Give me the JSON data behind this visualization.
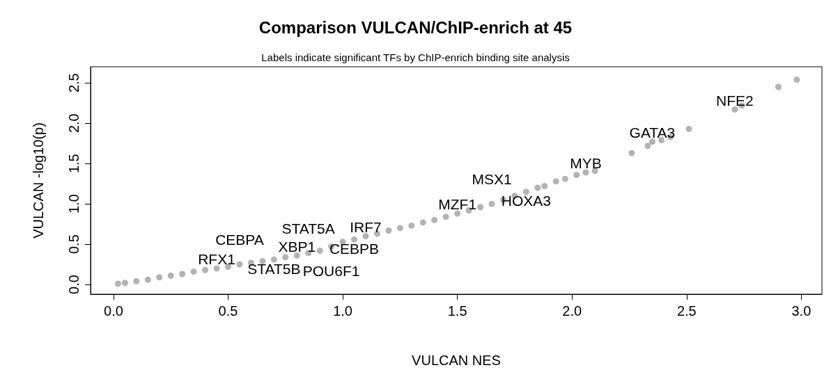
{
  "chart_data": {
    "type": "scatter",
    "title": "Comparison VULCAN/ChIP-enrich at 45",
    "subtitle": "Labels indicate significant TFs by ChIP-enrich binding site analysis",
    "xlabel": "VULCAN NES",
    "ylabel": "VULCAN -log10(p)",
    "x": [
      0.02,
      0.05,
      0.1,
      0.15,
      0.2,
      0.25,
      0.3,
      0.35,
      0.4,
      0.45,
      0.5,
      0.55,
      0.6,
      0.65,
      0.7,
      0.75,
      0.8,
      0.85,
      0.9,
      0.95,
      1.0,
      1.05,
      1.1,
      1.15,
      1.2,
      1.25,
      1.3,
      1.35,
      1.4,
      1.45,
      1.5,
      1.55,
      1.6,
      1.65,
      1.7,
      1.75,
      1.8,
      1.85,
      1.88,
      1.93,
      1.97,
      2.02,
      2.06,
      2.1,
      2.26,
      2.33,
      2.35,
      2.39,
      2.43,
      2.51,
      2.71,
      2.74,
      2.9,
      2.98
    ],
    "values": [
      0.01,
      0.02,
      0.04,
      0.06,
      0.09,
      0.11,
      0.13,
      0.16,
      0.18,
      0.2,
      0.22,
      0.25,
      0.27,
      0.29,
      0.31,
      0.34,
      0.36,
      0.39,
      0.42,
      0.47,
      0.53,
      0.56,
      0.6,
      0.63,
      0.67,
      0.7,
      0.73,
      0.77,
      0.8,
      0.84,
      0.88,
      0.92,
      0.96,
      1.0,
      1.05,
      1.1,
      1.15,
      1.2,
      1.22,
      1.28,
      1.31,
      1.36,
      1.39,
      1.41,
      1.63,
      1.72,
      1.77,
      1.79,
      1.83,
      1.93,
      2.17,
      2.22,
      2.45,
      2.54
    ],
    "color": "#b3b3b3",
    "marker": "circle",
    "grid": false,
    "xlim": [
      -0.1,
      3.09
    ],
    "xticks": [
      {
        "value": 0,
        "label": "0.0"
      },
      {
        "value": 0.5,
        "label": "0.5"
      },
      {
        "value": 1,
        "label": "1.0"
      },
      {
        "value": 1.5,
        "label": "1.5"
      },
      {
        "value": 2,
        "label": "2.0"
      },
      {
        "value": 2.5,
        "label": "2.5"
      },
      {
        "value": 3,
        "label": "3.0"
      }
    ],
    "ylim": [
      -0.12,
      2.7
    ],
    "yticks": [
      {
        "value": 0,
        "label": "0.0"
      },
      {
        "value": 0.5,
        "label": "0.5"
      },
      {
        "value": 1,
        "label": "1.0"
      },
      {
        "value": 1.5,
        "label": "1.5"
      },
      {
        "value": 2,
        "label": "2.0"
      },
      {
        "value": 2.5,
        "label": "2.5"
      }
    ],
    "annotations": [
      {
        "text": "RFX1",
        "x": 0.45,
        "y": 0.2
      },
      {
        "text": "CEBPA",
        "x": 0.55,
        "y": 0.25
      },
      {
        "text": "STAT5B",
        "x": 0.7,
        "y": 0.31
      },
      {
        "text": "XBP1",
        "x": 0.8,
        "y": 0.36
      },
      {
        "text": "STAT5A",
        "x": 0.85,
        "y": 0.39
      },
      {
        "text": "IRF7",
        "x": 1.1,
        "y": 0.6
      },
      {
        "text": "CEBPB",
        "x": 1.05,
        "y": 0.56
      },
      {
        "text": "POU6F1",
        "x": 0.95,
        "y": 0.47
      },
      {
        "text": "MZF1",
        "x": 1.5,
        "y": 0.88
      },
      {
        "text": "MSX1",
        "x": 1.65,
        "y": 1.0
      },
      {
        "text": "HOXA3",
        "x": 1.8,
        "y": 1.15
      },
      {
        "text": "MYB",
        "x": 2.06,
        "y": 1.39
      },
      {
        "text": "GATA3",
        "x": 2.35,
        "y": 1.77
      },
      {
        "text": "NFE2",
        "x": 2.71,
        "y": 2.17
      }
    ]
  }
}
